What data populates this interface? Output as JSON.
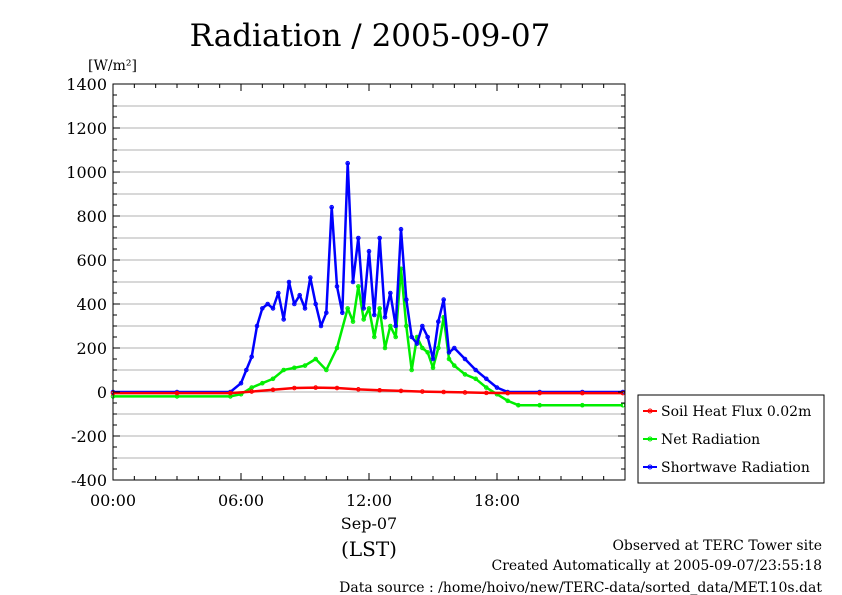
{
  "chart_data": {
    "type": "line",
    "title": "Radiation / 2005-09-07",
    "ylabel": "[W/m²]",
    "xlabel_date": "Sep-07",
    "xlabel_tz": "(LST)",
    "ylim": [
      -400,
      1400
    ],
    "xlim_hours": [
      0,
      24
    ],
    "yticks": [
      -400,
      -200,
      0,
      200,
      400,
      600,
      800,
      1000,
      1200,
      1400
    ],
    "xticks": [
      {
        "h": 0,
        "label": "00:00"
      },
      {
        "h": 6,
        "label": "06:00"
      },
      {
        "h": 12,
        "label": "12:00"
      },
      {
        "h": 18,
        "label": "18:00"
      }
    ],
    "grid": true,
    "legend_position": "bottom-right outside",
    "series": [
      {
        "name": "Soil Heat Flux 0.02m",
        "color": "#ff0000",
        "x": [
          0,
          3,
          5.5,
          6.5,
          7.5,
          8.5,
          9.5,
          10.5,
          11.5,
          12.5,
          13.5,
          14.5,
          15.5,
          16.5,
          17.5,
          18.5,
          20,
          22,
          23.9
        ],
        "y": [
          -5,
          -5,
          -5,
          2,
          10,
          18,
          20,
          18,
          12,
          8,
          5,
          2,
          0,
          -2,
          -4,
          -5,
          -5,
          -5,
          -5
        ]
      },
      {
        "name": "Net Radiation",
        "color": "#00ee00",
        "x": [
          0,
          3,
          5.5,
          6,
          6.5,
          7,
          7.5,
          8,
          8.5,
          9,
          9.5,
          10,
          10.5,
          11,
          11.25,
          11.5,
          11.75,
          12,
          12.25,
          12.5,
          12.75,
          13,
          13.25,
          13.5,
          13.75,
          14,
          14.25,
          14.5,
          14.75,
          15,
          15.25,
          15.5,
          15.75,
          16,
          16.5,
          17,
          17.5,
          18,
          18.5,
          19,
          20,
          22,
          23.9
        ],
        "y": [
          -20,
          -20,
          -20,
          -10,
          20,
          40,
          60,
          100,
          110,
          120,
          150,
          100,
          200,
          380,
          320,
          480,
          330,
          380,
          250,
          380,
          200,
          300,
          250,
          560,
          300,
          100,
          250,
          200,
          180,
          110,
          200,
          340,
          150,
          120,
          80,
          60,
          20,
          -10,
          -40,
          -60,
          -60,
          -60,
          -60
        ]
      },
      {
        "name": "Shortwave Radiation",
        "color": "#0000ff",
        "x": [
          0,
          3,
          5.5,
          6,
          6.25,
          6.5,
          6.75,
          7,
          7.25,
          7.5,
          7.75,
          8,
          8.25,
          8.5,
          8.75,
          9,
          9.25,
          9.5,
          9.75,
          10,
          10.25,
          10.5,
          10.75,
          11,
          11.25,
          11.5,
          11.75,
          12,
          12.25,
          12.5,
          12.75,
          13,
          13.25,
          13.5,
          13.75,
          14,
          14.25,
          14.5,
          14.75,
          15,
          15.25,
          15.5,
          15.75,
          16,
          16.5,
          17,
          17.5,
          18,
          18.5,
          20,
          22,
          23.9
        ],
        "y": [
          0,
          0,
          0,
          40,
          100,
          160,
          300,
          380,
          400,
          380,
          450,
          330,
          500,
          400,
          440,
          380,
          520,
          400,
          300,
          360,
          840,
          480,
          360,
          1040,
          500,
          700,
          380,
          640,
          350,
          700,
          340,
          450,
          300,
          740,
          420,
          250,
          220,
          300,
          250,
          150,
          320,
          420,
          180,
          200,
          150,
          100,
          60,
          20,
          0,
          0,
          0,
          0
        ]
      }
    ]
  },
  "footer": {
    "line1": "Observed at TERC Tower site",
    "line2": "Created Automatically at 2005-09-07/23:55:18",
    "line3": "Data source : /home/hoivo/new/TERC-data/sorted_data/MET.10s.dat"
  }
}
